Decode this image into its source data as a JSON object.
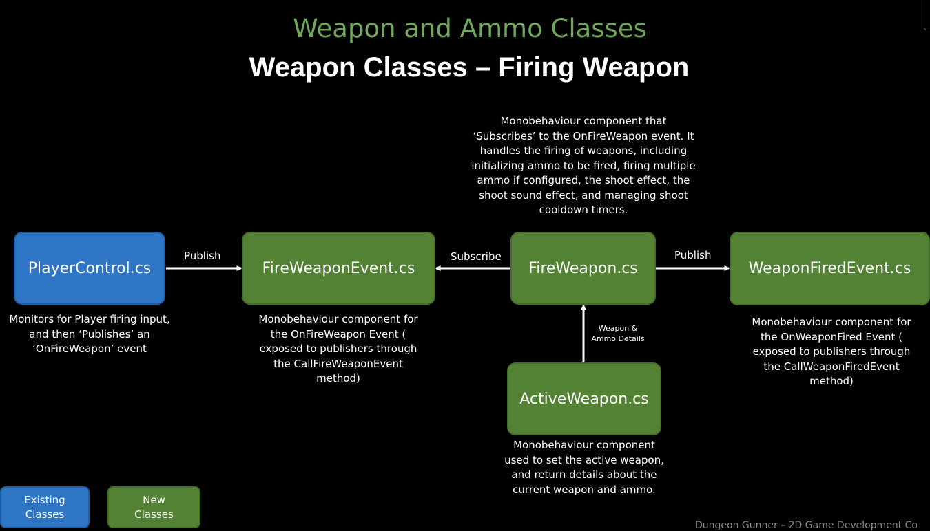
{
  "header": {
    "subtitle": "Weapon and Ammo Classes",
    "title": "Weapon Classes – Firing Weapon"
  },
  "boxes": {
    "player_control": "PlayerControl.cs",
    "fire_weapon_event": "FireWeaponEvent.cs",
    "fire_weapon": "FireWeapon.cs",
    "weapon_fired_event": "WeaponFiredEvent.cs",
    "active_weapon": "ActiveWeapon.cs"
  },
  "edges": {
    "publish_1": "Publish",
    "subscribe": "Subscribe",
    "publish_2": "Publish",
    "weapon_ammo_line1": "Weapon &",
    "weapon_ammo_line2": "Ammo Details"
  },
  "descriptions": {
    "player_control": [
      "Monitors for Player firing input,",
      "and then ‘Publishes’ an",
      "‘OnFireWeapon’ event"
    ],
    "fire_weapon_event": [
      "Monobehaviour component for",
      "the OnFireWeapon Event (",
      "exposed to publishers through",
      "the CallFireWeaponEvent",
      "method)"
    ],
    "fire_weapon": [
      "Monobehaviour component that",
      "‘Subscribes’ to the OnFireWeapon event. It",
      "handles the firing of weapons, including",
      "initializing ammo to be fired, firing multiple",
      "ammo if configured, the shoot effect, the",
      "shoot sound effect, and managing shoot",
      "cooldown timers."
    ],
    "weapon_fired_event": [
      "Monobehaviour component for",
      "the OnWeaponFired Event (",
      "exposed to publishers through",
      "the CallWeaponFiredEvent",
      "method)"
    ],
    "active_weapon": [
      "Monobehaviour component",
      "used to set the active weapon,",
      "and return details about the",
      "current weapon and ammo."
    ]
  },
  "legend": {
    "existing": [
      "Existing",
      "Classes"
    ],
    "new": [
      "New",
      "Classes"
    ]
  },
  "footer": "Dungeon Gunner – 2D Game Development Co",
  "colors": {
    "subtitle": "#6fa85a",
    "existing_class": "#2e75c6",
    "new_class": "#548235",
    "background": "#000000"
  }
}
